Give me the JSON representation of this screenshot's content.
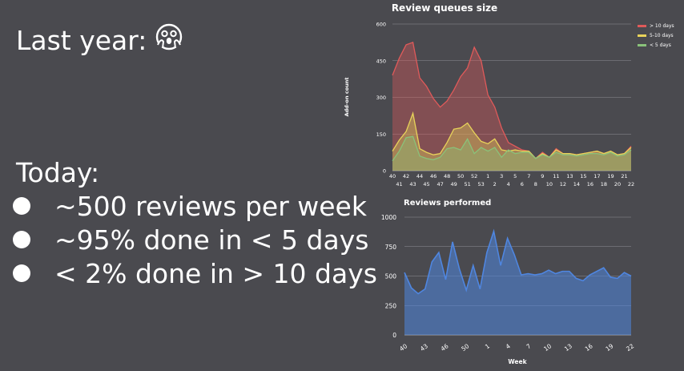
{
  "slide": {
    "headline": "Last year:",
    "today_label": "Today:",
    "bullets": [
      "~500 reviews per week",
      "~95% done in < 5 days",
      "< 2% done in > 10 days"
    ]
  },
  "colors": {
    "red": "#e05a5a",
    "yellow": "#e8d35a",
    "green": "#8ac27a",
    "blue": "#4f86e0",
    "background": "#4a4a4f"
  },
  "chart_data": [
    {
      "type": "area",
      "title": "Review queues size",
      "ylabel": "Add-on count",
      "xlabel": "",
      "ylim": [
        0,
        600
      ],
      "yticks": [
        "0",
        "150",
        "300",
        "450",
        "600"
      ],
      "x": [
        "40",
        "41",
        "42",
        "43",
        "44",
        "45",
        "46",
        "47",
        "48",
        "49",
        "50",
        "51",
        "52",
        "53",
        "1",
        "2",
        "3",
        "4",
        "5",
        "6",
        "7",
        "8",
        "9",
        "10",
        "11",
        "12",
        "13",
        "14",
        "15",
        "16",
        "17",
        "18",
        "19",
        "20",
        "21",
        "22"
      ],
      "legend_position": "top-right",
      "series": [
        {
          "name": "> 10 days",
          "color": "#e05a5a",
          "values": [
            390,
            460,
            515,
            525,
            380,
            345,
            295,
            260,
            285,
            330,
            385,
            420,
            505,
            450,
            310,
            260,
            175,
            115,
            100,
            85,
            80,
            50,
            75,
            55,
            90,
            70,
            70,
            65,
            70,
            75,
            80,
            70,
            80,
            65,
            70,
            100
          ]
        },
        {
          "name": "5-10 days",
          "color": "#e8d35a",
          "values": [
            80,
            125,
            160,
            235,
            90,
            75,
            65,
            70,
            115,
            170,
            175,
            195,
            155,
            120,
            110,
            130,
            85,
            80,
            85,
            80,
            80,
            50,
            70,
            55,
            85,
            70,
            70,
            65,
            70,
            75,
            80,
            70,
            80,
            65,
            70,
            95
          ]
        },
        {
          "name": "< 5 days",
          "color": "#8ac27a",
          "values": [
            40,
            80,
            135,
            140,
            60,
            50,
            45,
            55,
            90,
            95,
            85,
            130,
            70,
            95,
            80,
            95,
            55,
            85,
            70,
            75,
            75,
            50,
            65,
            55,
            75,
            65,
            65,
            60,
            65,
            70,
            70,
            65,
            75,
            60,
            65,
            85
          ]
        }
      ]
    },
    {
      "type": "area",
      "title": "Reviews performed",
      "xlabel": "Week",
      "ylabel": "",
      "ylim": [
        0,
        1000
      ],
      "yticks": [
        "0",
        "250",
        "500",
        "750",
        "1000"
      ],
      "xticks": [
        "40",
        "43",
        "46",
        "50",
        "1",
        "4",
        "7",
        "10",
        "13",
        "16",
        "19",
        "22"
      ],
      "series": [
        {
          "name": "",
          "color": "#4f86e0",
          "values": [
            530,
            400,
            350,
            390,
            620,
            700,
            470,
            790,
            560,
            380,
            590,
            390,
            700,
            880,
            590,
            820,
            680,
            510,
            520,
            510,
            520,
            550,
            520,
            540,
            540,
            480,
            460,
            510,
            540,
            570,
            490,
            480,
            530,
            500
          ]
        }
      ]
    }
  ]
}
